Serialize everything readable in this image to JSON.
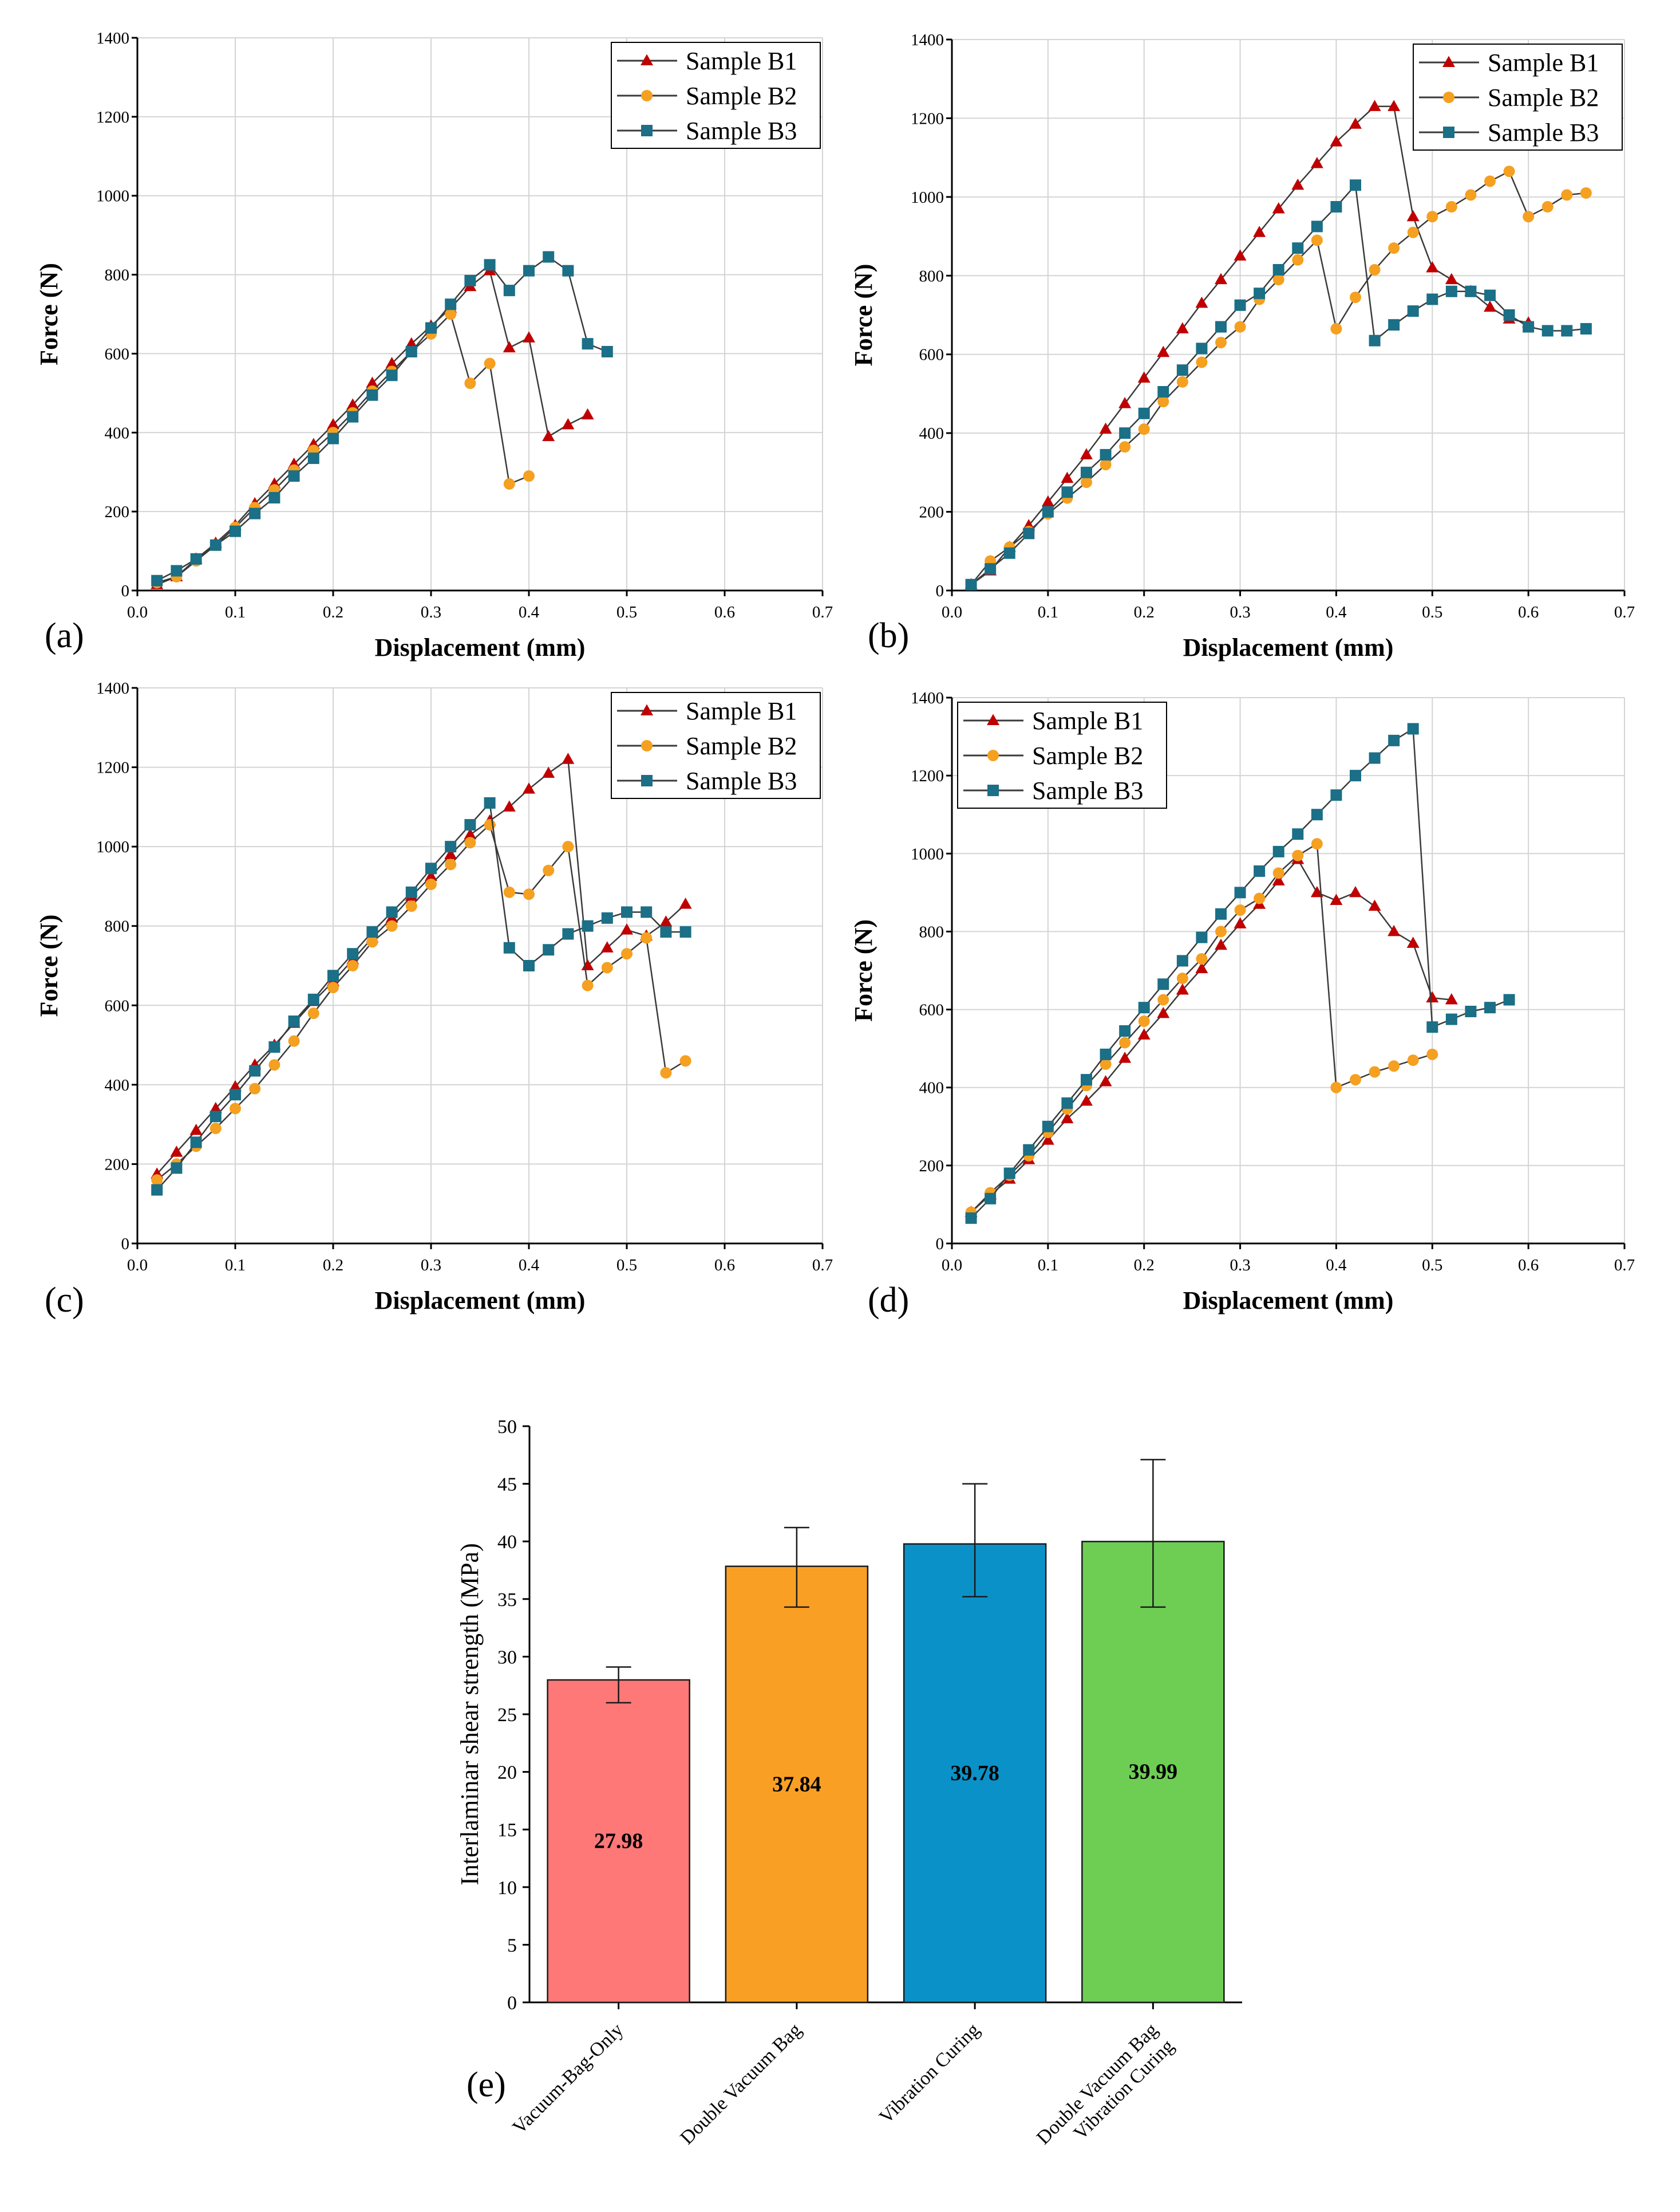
{
  "chart_data": [
    {
      "panel": "(a)",
      "type": "line",
      "xlabel": "Displacement (mm)",
      "ylabel": "Force (N)",
      "xlim": [
        0,
        0.7
      ],
      "ylim": [
        0,
        1400
      ],
      "xticks": [
        "0.0",
        "0.1",
        "0.2",
        "0.3",
        "0.4",
        "0.5",
        "0.6",
        "0.7"
      ],
      "yticks": [
        "0",
        "200",
        "400",
        "600",
        "800",
        "1000",
        "1200",
        "1400"
      ],
      "grid": true,
      "legend_position": "top-right",
      "series": [
        {
          "name": "Sample B1",
          "marker": "triangle",
          "color": "#C00000",
          "x": [
            0.02,
            0.04,
            0.06,
            0.08,
            0.1,
            0.12,
            0.14,
            0.16,
            0.18,
            0.2,
            0.22,
            0.24,
            0.26,
            0.28,
            0.3,
            0.32,
            0.34,
            0.36,
            0.38,
            0.4,
            0.42,
            0.44,
            0.46
          ],
          "y": [
            15,
            35,
            80,
            120,
            165,
            220,
            270,
            320,
            370,
            420,
            470,
            525,
            575,
            625,
            670,
            715,
            770,
            810,
            615,
            640,
            390,
            420,
            445
          ]
        },
        {
          "name": "Sample B2",
          "marker": "circle",
          "color": "#F5A020",
          "x": [
            0.02,
            0.04,
            0.06,
            0.08,
            0.1,
            0.12,
            0.14,
            0.16,
            0.18,
            0.2,
            0.22,
            0.24,
            0.26,
            0.28,
            0.3,
            0.32,
            0.34,
            0.36,
            0.38,
            0.4
          ],
          "y": [
            20,
            35,
            75,
            115,
            160,
            210,
            255,
            305,
            355,
            400,
            450,
            505,
            555,
            605,
            650,
            700,
            525,
            575,
            270,
            290
          ]
        },
        {
          "name": "Sample B3",
          "marker": "square",
          "color": "#1B6F86",
          "x": [
            0.02,
            0.04,
            0.06,
            0.08,
            0.1,
            0.12,
            0.14,
            0.16,
            0.18,
            0.2,
            0.22,
            0.24,
            0.26,
            0.28,
            0.3,
            0.32,
            0.34,
            0.36,
            0.38,
            0.4,
            0.42,
            0.44,
            0.46,
            0.48
          ],
          "y": [
            25,
            50,
            80,
            115,
            150,
            195,
            235,
            290,
            335,
            385,
            440,
            495,
            545,
            605,
            665,
            725,
            785,
            825,
            760,
            810,
            845,
            810,
            625,
            605
          ]
        }
      ]
    },
    {
      "panel": "(b)",
      "type": "line",
      "xlabel": "Displacement (mm)",
      "ylabel": "Force (N)",
      "xlim": [
        0,
        0.7
      ],
      "ylim": [
        0,
        1400
      ],
      "xticks": [
        "0.0",
        "0.1",
        "0.2",
        "0.3",
        "0.4",
        "0.5",
        "0.6",
        "0.7"
      ],
      "yticks": [
        "0",
        "200",
        "400",
        "600",
        "800",
        "1000",
        "1200",
        "1400"
      ],
      "grid": true,
      "legend_position": "top-right",
      "series": [
        {
          "name": "Sample B1",
          "marker": "triangle",
          "color": "#C00000",
          "x": [
            0.02,
            0.04,
            0.06,
            0.08,
            0.1,
            0.12,
            0.14,
            0.16,
            0.18,
            0.2,
            0.22,
            0.24,
            0.26,
            0.28,
            0.3,
            0.32,
            0.34,
            0.36,
            0.38,
            0.4,
            0.42,
            0.44,
            0.46,
            0.48,
            0.5,
            0.52,
            0.54,
            0.56,
            0.58,
            0.6
          ],
          "y": [
            15,
            50,
            110,
            165,
            225,
            285,
            345,
            410,
            475,
            540,
            605,
            665,
            730,
            790,
            850,
            910,
            970,
            1030,
            1085,
            1140,
            1185,
            1230,
            1230,
            950,
            820,
            790,
            760,
            720,
            690,
            680
          ]
        },
        {
          "name": "Sample B2",
          "marker": "circle",
          "color": "#F5A020",
          "x": [
            0.02,
            0.04,
            0.06,
            0.08,
            0.1,
            0.12,
            0.14,
            0.16,
            0.18,
            0.2,
            0.22,
            0.24,
            0.26,
            0.28,
            0.3,
            0.32,
            0.34,
            0.36,
            0.38,
            0.4,
            0.42,
            0.44,
            0.46,
            0.48,
            0.5,
            0.52,
            0.54,
            0.56,
            0.58,
            0.6,
            0.62,
            0.64,
            0.66
          ],
          "y": [
            15,
            75,
            110,
            150,
            195,
            235,
            275,
            320,
            365,
            410,
            480,
            530,
            580,
            630,
            670,
            740,
            790,
            840,
            890,
            665,
            745,
            815,
            870,
            910,
            950,
            975,
            1005,
            1040,
            1065,
            950,
            975,
            1005,
            1010
          ]
        },
        {
          "name": "Sample B3",
          "marker": "square",
          "color": "#1B6F86",
          "x": [
            0.02,
            0.04,
            0.06,
            0.08,
            0.1,
            0.12,
            0.14,
            0.16,
            0.18,
            0.2,
            0.22,
            0.24,
            0.26,
            0.28,
            0.3,
            0.32,
            0.34,
            0.36,
            0.38,
            0.4,
            0.42,
            0.44,
            0.46,
            0.48,
            0.5,
            0.52,
            0.54,
            0.56,
            0.58,
            0.6,
            0.62,
            0.64,
            0.66
          ],
          "y": [
            15,
            55,
            95,
            145,
            200,
            250,
            300,
            345,
            400,
            450,
            505,
            560,
            615,
            670,
            725,
            755,
            815,
            870,
            925,
            975,
            1030,
            635,
            675,
            710,
            740,
            760,
            760,
            750,
            700,
            670,
            660,
            660,
            665
          ]
        }
      ]
    },
    {
      "panel": "(c)",
      "type": "line",
      "xlabel": "Displacement (mm)",
      "ylabel": "Force (N)",
      "xlim": [
        0,
        0.7
      ],
      "ylim": [
        0,
        1400
      ],
      "xticks": [
        "0.0",
        "0.1",
        "0.2",
        "0.3",
        "0.4",
        "0.5",
        "0.6",
        "0.7"
      ],
      "yticks": [
        "0",
        "200",
        "400",
        "600",
        "800",
        "1000",
        "1200",
        "1400"
      ],
      "grid": true,
      "legend_position": "top-right",
      "series": [
        {
          "name": "Sample B1",
          "marker": "triangle",
          "color": "#C00000",
          "x": [
            0.02,
            0.04,
            0.06,
            0.08,
            0.1,
            0.12,
            0.14,
            0.16,
            0.18,
            0.2,
            0.22,
            0.24,
            0.26,
            0.28,
            0.3,
            0.32,
            0.34,
            0.36,
            0.38,
            0.4,
            0.42,
            0.44,
            0.46,
            0.48,
            0.5,
            0.52,
            0.54,
            0.56
          ],
          "y": [
            175,
            230,
            285,
            340,
            395,
            450,
            500,
            555,
            610,
            660,
            715,
            770,
            820,
            875,
            925,
            980,
            1030,
            1065,
            1100,
            1145,
            1185,
            1220,
            700,
            745,
            790,
            775,
            810,
            855
          ]
        },
        {
          "name": "Sample B2",
          "marker": "circle",
          "color": "#F5A020",
          "x": [
            0.02,
            0.04,
            0.06,
            0.08,
            0.1,
            0.12,
            0.14,
            0.16,
            0.18,
            0.2,
            0.22,
            0.24,
            0.26,
            0.28,
            0.3,
            0.32,
            0.34,
            0.36,
            0.38,
            0.4,
            0.42,
            0.44,
            0.46,
            0.48,
            0.5,
            0.52,
            0.54,
            0.56
          ],
          "y": [
            160,
            200,
            245,
            290,
            340,
            390,
            450,
            510,
            580,
            645,
            700,
            760,
            800,
            850,
            905,
            955,
            1010,
            1055,
            885,
            880,
            940,
            1000,
            650,
            695,
            730,
            770,
            430,
            460
          ]
        },
        {
          "name": "Sample B3",
          "marker": "square",
          "color": "#1B6F86",
          "x": [
            0.02,
            0.04,
            0.06,
            0.08,
            0.1,
            0.12,
            0.14,
            0.16,
            0.18,
            0.2,
            0.22,
            0.24,
            0.26,
            0.28,
            0.3,
            0.32,
            0.34,
            0.36,
            0.38,
            0.4,
            0.42,
            0.44,
            0.46,
            0.48,
            0.5,
            0.52,
            0.54,
            0.56
          ],
          "y": [
            135,
            190,
            255,
            320,
            375,
            435,
            495,
            560,
            615,
            675,
            730,
            785,
            835,
            885,
            945,
            1000,
            1055,
            1110,
            745,
            700,
            740,
            780,
            800,
            820,
            835,
            835,
            785,
            785
          ]
        }
      ]
    },
    {
      "panel": "(d)",
      "type": "line",
      "xlabel": "Displacement (mm)",
      "ylabel": "Force (N)",
      "xlim": [
        0,
        0.7
      ],
      "ylim": [
        0,
        1400
      ],
      "xticks": [
        "0.0",
        "0.1",
        "0.2",
        "0.3",
        "0.4",
        "0.5",
        "0.6",
        "0.7"
      ],
      "yticks": [
        "0",
        "200",
        "400",
        "600",
        "800",
        "1000",
        "1200",
        "1400"
      ],
      "grid": true,
      "legend_position": "top-left",
      "series": [
        {
          "name": "Sample B1",
          "marker": "triangle",
          "color": "#C00000",
          "x": [
            0.02,
            0.04,
            0.06,
            0.08,
            0.1,
            0.12,
            0.14,
            0.16,
            0.18,
            0.2,
            0.22,
            0.24,
            0.26,
            0.28,
            0.3,
            0.32,
            0.34,
            0.36,
            0.38,
            0.4,
            0.42,
            0.44,
            0.46,
            0.48,
            0.5,
            0.52
          ],
          "y": [
            80,
            125,
            165,
            215,
            265,
            320,
            365,
            415,
            475,
            535,
            590,
            650,
            705,
            765,
            820,
            870,
            930,
            985,
            900,
            880,
            900,
            865,
            800,
            770,
            630,
            625
          ]
        },
        {
          "name": "Sample B2",
          "marker": "circle",
          "color": "#F5A020",
          "x": [
            0.02,
            0.04,
            0.06,
            0.08,
            0.1,
            0.12,
            0.14,
            0.16,
            0.18,
            0.2,
            0.22,
            0.24,
            0.26,
            0.28,
            0.3,
            0.32,
            0.34,
            0.36,
            0.38,
            0.4,
            0.42,
            0.44,
            0.46,
            0.48,
            0.5
          ],
          "y": [
            80,
            130,
            175,
            225,
            285,
            345,
            405,
            460,
            515,
            570,
            625,
            680,
            730,
            800,
            855,
            885,
            950,
            995,
            1025,
            400,
            420,
            440,
            455,
            470,
            485
          ]
        },
        {
          "name": "Sample B3",
          "marker": "square",
          "color": "#1B6F86",
          "x": [
            0.02,
            0.04,
            0.06,
            0.08,
            0.1,
            0.12,
            0.14,
            0.16,
            0.18,
            0.2,
            0.22,
            0.24,
            0.26,
            0.28,
            0.3,
            0.32,
            0.34,
            0.36,
            0.38,
            0.4,
            0.42,
            0.44,
            0.46,
            0.48,
            0.5,
            0.52,
            0.54,
            0.56,
            0.58
          ],
          "y": [
            65,
            115,
            180,
            240,
            300,
            360,
            420,
            485,
            545,
            605,
            665,
            725,
            785,
            845,
            900,
            955,
            1005,
            1050,
            1100,
            1150,
            1200,
            1245,
            1290,
            1320,
            555,
            575,
            595,
            605,
            625
          ]
        }
      ]
    },
    {
      "panel": "(e)",
      "type": "bar",
      "ylabel": "Interlaminar shear strength (MPa)",
      "ylim": [
        0,
        50
      ],
      "yticks": [
        "0",
        "5",
        "10",
        "15",
        "20",
        "25",
        "30",
        "35",
        "40",
        "45",
        "50"
      ],
      "grid": false,
      "categories": [
        "Vacuum-Bag-Only",
        "Double Vacuum Bag",
        "Vibration Curing",
        "Double Vacuum Bag Vibration Curing"
      ],
      "category_lines": [
        [
          "Vacuum-Bag-Only"
        ],
        [
          "Double Vacuum Bag"
        ],
        [
          "Vibration Curing"
        ],
        [
          "Double Vacuum Bag",
          "Vibration Curing"
        ]
      ],
      "values": [
        27.98,
        37.84,
        39.78,
        39.99
      ],
      "value_labels": [
        "27.98",
        "37.84",
        "39.78",
        "39.99"
      ],
      "error_low": [
        26.0,
        34.3,
        35.2,
        34.3
      ],
      "error_high": [
        29.1,
        41.2,
        45.0,
        47.1
      ],
      "colors": [
        "#FF7878",
        "#F9A024",
        "#0A92C8",
        "#6ECE54"
      ]
    }
  ]
}
